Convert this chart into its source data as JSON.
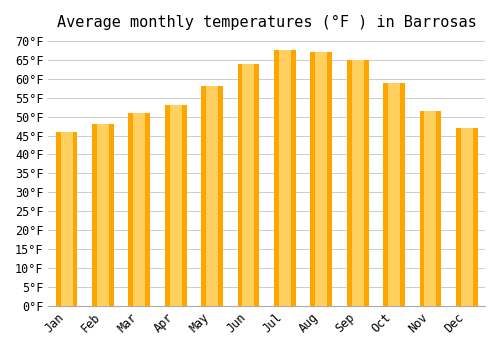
{
  "title": "Average monthly temperatures (°F ) in Barrosas",
  "months": [
    "Jan",
    "Feb",
    "Mar",
    "Apr",
    "May",
    "Jun",
    "Jul",
    "Aug",
    "Sep",
    "Oct",
    "Nov",
    "Dec"
  ],
  "values": [
    46.0,
    48.0,
    51.0,
    53.0,
    58.0,
    64.0,
    67.5,
    67.0,
    65.0,
    59.0,
    51.5,
    47.0
  ],
  "bar_color_top": "#FFA500",
  "bar_color_bottom": "#FFD060",
  "ylim": [
    0,
    70
  ],
  "yticks": [
    0,
    5,
    10,
    15,
    20,
    25,
    30,
    35,
    40,
    45,
    50,
    55,
    60,
    65,
    70
  ],
  "background_color": "#ffffff",
  "grid_color": "#cccccc",
  "title_fontsize": 11,
  "tick_fontsize": 8.5,
  "title_font": "monospace"
}
